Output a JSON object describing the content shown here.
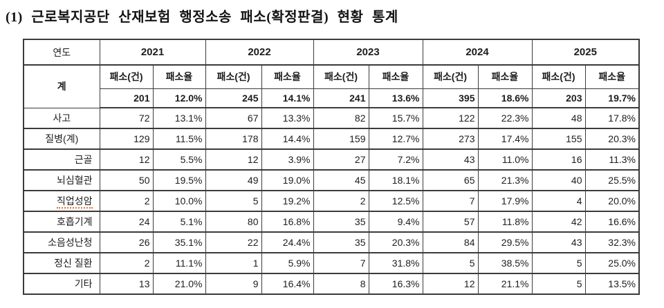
{
  "title": "(1) 근로복지공단 산재보험 행정소송 패소(확정판결) 현황 통계",
  "colors": {
    "spellcheck_underline": "#e2702e",
    "table_border": "#3a3a3a"
  },
  "table": {
    "corner_label": "연도",
    "total_label": "계",
    "years": [
      "2021",
      "2022",
      "2023",
      "2024",
      "2025"
    ],
    "sub_headers": {
      "count": "패소(건)",
      "rate": "패소율"
    },
    "total_row": [
      "201",
      "12.0%",
      "245",
      "14.1%",
      "241",
      "13.6%",
      "395",
      "18.6%",
      "203",
      "19.7%"
    ],
    "rows": [
      {
        "label": "사고",
        "indent": false,
        "squiggle": false,
        "values": [
          "72",
          "13.1%",
          "67",
          "13.3%",
          "82",
          "15.7%",
          "122",
          "22.3%",
          "48",
          "17.8%"
        ]
      },
      {
        "label": "질병(계)",
        "indent": false,
        "squiggle": false,
        "values": [
          "129",
          "11.5%",
          "178",
          "14.4%",
          "159",
          "12.7%",
          "273",
          "17.4%",
          "155",
          "20.3%"
        ]
      },
      {
        "label": "근골",
        "indent": true,
        "squiggle": false,
        "values": [
          "12",
          "5.5%",
          "12",
          "3.9%",
          "27",
          "7.2%",
          "43",
          "11.0%",
          "16",
          "11.3%"
        ]
      },
      {
        "label": "뇌심혈관",
        "indent": true,
        "squiggle": false,
        "values": [
          "50",
          "19.5%",
          "49",
          "19.0%",
          "45",
          "18.1%",
          "65",
          "21.3%",
          "40",
          "25.5%"
        ]
      },
      {
        "label": "직업성암",
        "indent": true,
        "squiggle": true,
        "values": [
          "2",
          "10.0%",
          "5",
          "19.2%",
          "2",
          "12.5%",
          "7",
          "17.9%",
          "4",
          "20.0%"
        ]
      },
      {
        "label": "호흡기계",
        "indent": true,
        "squiggle": false,
        "values": [
          "24",
          "5.1%",
          "80",
          "16.8%",
          "35",
          "9.4%",
          "57",
          "11.8%",
          "42",
          "16.6%"
        ]
      },
      {
        "label": "소음성난청",
        "indent": true,
        "squiggle": false,
        "values": [
          "26",
          "35.1%",
          "22",
          "24.4%",
          "35",
          "20.3%",
          "84",
          "29.5%",
          "43",
          "32.3%"
        ]
      },
      {
        "label": "정신 질환",
        "indent": true,
        "squiggle": false,
        "values": [
          "2",
          "11.1%",
          "1",
          "5.9%",
          "7",
          "31.8%",
          "5",
          "38.5%",
          "5",
          "25.0%"
        ]
      },
      {
        "label": "기타",
        "indent": true,
        "squiggle": false,
        "values": [
          "13",
          "21.0%",
          "9",
          "16.4%",
          "8",
          "16.3%",
          "12",
          "21.1%",
          "5",
          "13.5%"
        ]
      }
    ]
  }
}
